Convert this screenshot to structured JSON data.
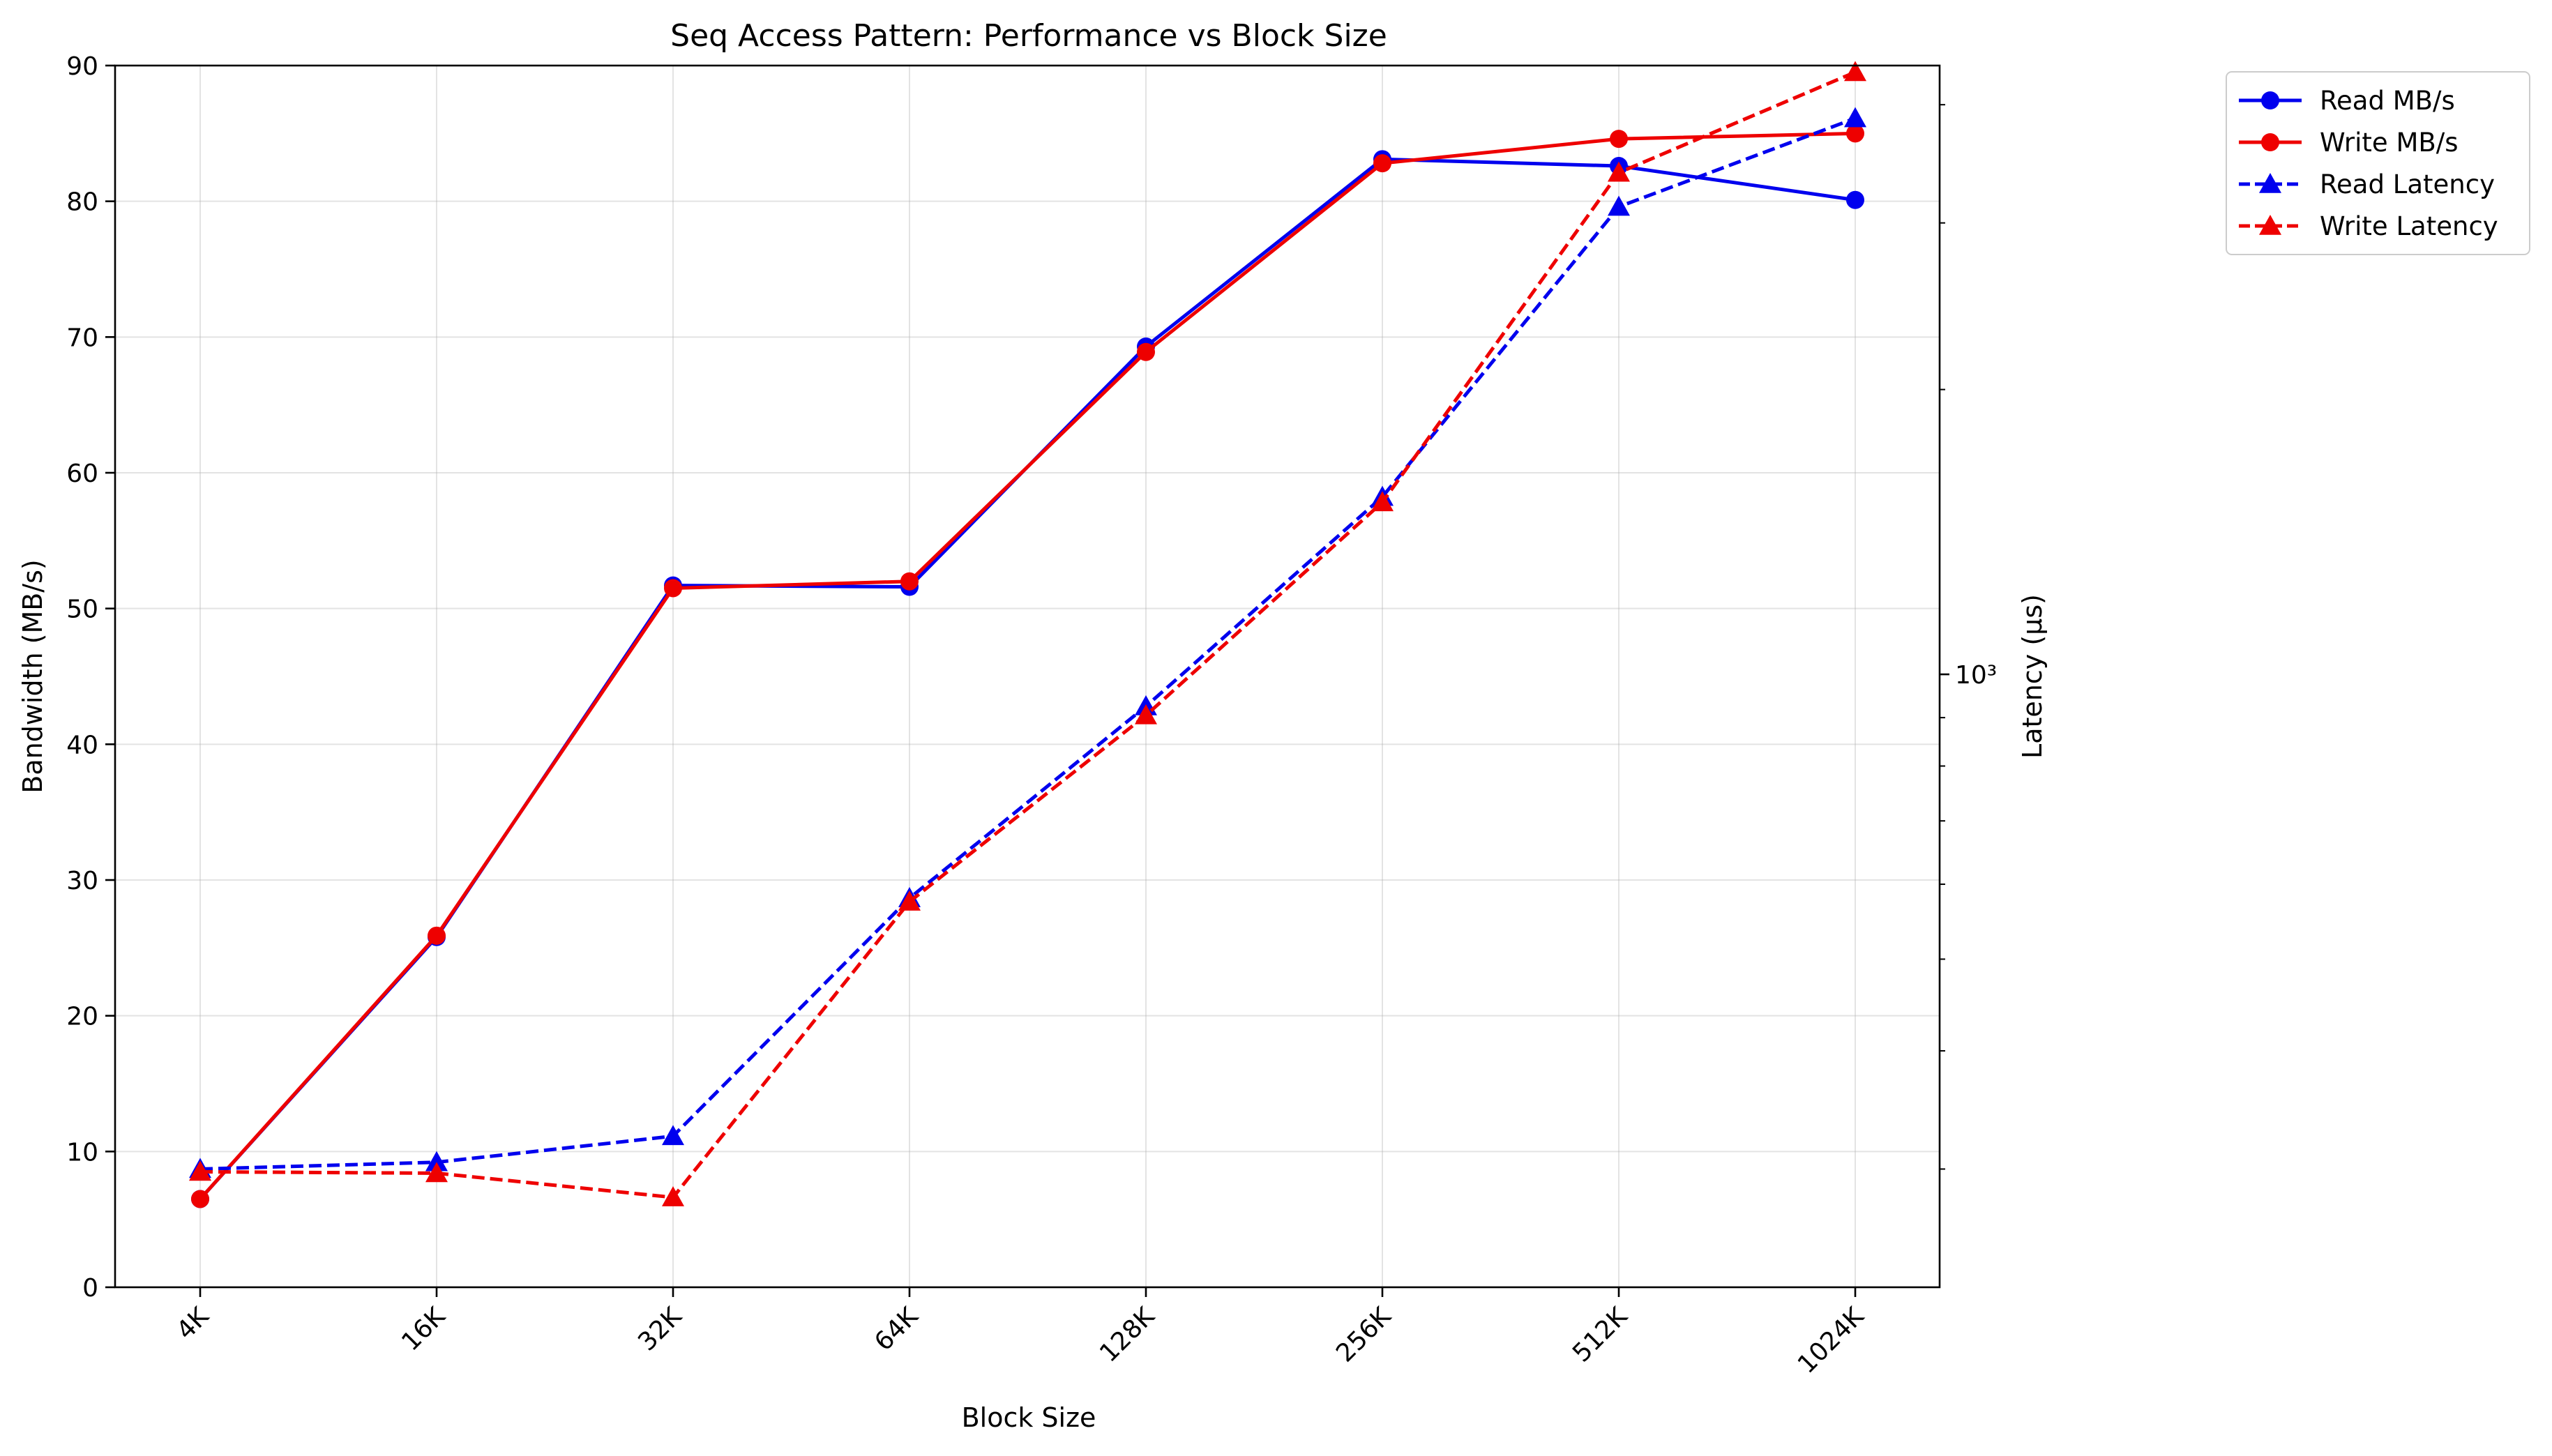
{
  "chart_data": {
    "type": "line",
    "title": "Seq Access Pattern: Performance vs Block Size",
    "xlabel": "Block Size",
    "ylabel": "Bandwidth (MB/s)",
    "y2label": "Latency (µs)",
    "categories": [
      "4K",
      "16K",
      "32K",
      "64K",
      "128K",
      "256K",
      "512K",
      "1024K"
    ],
    "ylim": [
      0,
      90
    ],
    "yticks": [
      "0",
      "10",
      "20",
      "30",
      "40",
      "50",
      "60",
      "70",
      "80",
      "90"
    ],
    "y2_scale": "log",
    "y2lim": [
      225,
      4400
    ],
    "y2_major_tick_label": "10³",
    "grid": true,
    "legend_position": "outside-top-right",
    "series": [
      {
        "name": "Read MB/s",
        "axis": "left",
        "color": "#0000ee",
        "style": "solid",
        "marker": "circle",
        "values": [
          6.5,
          25.8,
          51.7,
          51.6,
          69.3,
          83.1,
          82.6,
          80.1
        ]
      },
      {
        "name": "Write MB/s",
        "axis": "left",
        "color": "#ee0000",
        "style": "solid",
        "marker": "circle",
        "values": [
          6.5,
          25.9,
          51.5,
          52.0,
          68.9,
          82.8,
          84.6,
          85.0
        ]
      },
      {
        "name": "Read Latency",
        "axis": "right",
        "color": "#0000ee",
        "style": "dashed",
        "marker": "triangle",
        "values": [
          300,
          305,
          325,
          580,
          925,
          1540,
          3120,
          3870
        ]
      },
      {
        "name": "Write Latency",
        "axis": "right",
        "color": "#ee0000",
        "style": "dashed",
        "marker": "triangle",
        "values": [
          298,
          297,
          280,
          575,
          905,
          1520,
          3390,
          4330
        ]
      }
    ]
  }
}
